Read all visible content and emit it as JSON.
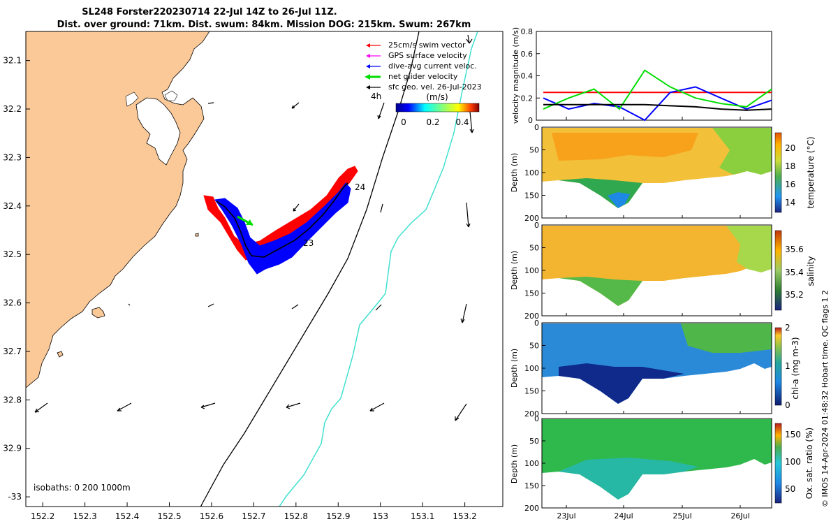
{
  "header": {
    "title_line1": "SL248 Forster220230714 22-Jul 14Z to 26-Jul 11Z.",
    "title_line2": "Dist. over ground: 71km. Dist. swum: 84km. Mission DOG: 215km. Swum: 267km"
  },
  "map": {
    "legend": [
      {
        "label": "25cm/s swim vector",
        "color": "#ff0000"
      },
      {
        "label": "GPS surface velocity",
        "color": "#ff00ff"
      },
      {
        "label": "dive-avg current veloc.",
        "color": "#0000ff"
      },
      {
        "label": "net glider velocity",
        "color": "#00dd00"
      },
      {
        "label": "sfc geo. vel. 26-Jul-2023",
        "color": "#000000"
      }
    ],
    "colorbar_title": "(m/s)",
    "colorbar_ticks": [
      "0",
      "0.2",
      "0.4"
    ],
    "label_4h": "4h",
    "label_24": "24",
    "label_23": "23",
    "isobaths_label": "isobaths: 0   200  1000m",
    "colors": {
      "land": "#fbc897",
      "isobath_200": "#000000",
      "isobath_1000": "#40e0d0",
      "dive_avg": "#0000ff",
      "swim": "#ff0000"
    }
  },
  "chart_data": [
    {
      "type": "scatter",
      "title": "",
      "xlabel": "",
      "ylabel": "",
      "x_ticks": [
        "152.2",
        "152.3",
        "152.4",
        "152.5",
        "152.6",
        "152.7",
        "152.8",
        "152.9",
        "153",
        "153.1",
        "153.2"
      ],
      "y_ticks": [
        "32.1",
        "32.2",
        "32.3",
        "32.4",
        "32.5",
        "32.6",
        "32.7",
        "32.8",
        "32.9",
        "-33"
      ],
      "xlim": [
        152.16,
        153.29
      ],
      "ylim": [
        -33.02,
        -32.04
      ],
      "series": [
        {
          "name": "glider track",
          "points": [
            [
              152.79,
              -32.5
            ],
            [
              152.85,
              -32.48
            ],
            [
              152.9,
              -32.42
            ],
            [
              152.92,
              -32.37
            ]
          ]
        }
      ]
    },
    {
      "type": "line",
      "ylabel": "velocity magnitude (m/s)",
      "ylim": [
        0,
        0.8
      ],
      "y_ticks": [
        "0",
        "0.2",
        "0.4",
        "0.6",
        "0.8"
      ],
      "x_ticks": [
        "23Jul",
        "24Jul",
        "25Jul",
        "26Jul"
      ],
      "series": [
        {
          "name": "25cm/s swim vector",
          "color": "#ff0000",
          "values": [
            0.25,
            0.25,
            0.25,
            0.25,
            0.25,
            0.25,
            0.25,
            0.25,
            0.25,
            0.25
          ]
        },
        {
          "name": "dive-avg current veloc.",
          "color": "#0000ff",
          "values": [
            0.2,
            0.1,
            0.15,
            0.12,
            0.0,
            0.25,
            0.3,
            0.2,
            0.1,
            0.18
          ]
        },
        {
          "name": "net glider velocity",
          "color": "#00dd00",
          "values": [
            0.1,
            0.2,
            0.28,
            0.1,
            0.45,
            0.3,
            0.2,
            0.15,
            0.12,
            0.28
          ]
        },
        {
          "name": "sfc geo. vel.",
          "color": "#000000",
          "values": [
            0.14,
            0.14,
            0.14,
            0.14,
            0.14,
            0.13,
            0.12,
            0.1,
            0.09,
            0.1
          ]
        }
      ]
    },
    {
      "type": "heatmap",
      "ylabel": "Depth (m)",
      "colorbar_label": "temperature (°C)",
      "colorbar_ticks": [
        "20",
        "18",
        "16",
        "14"
      ],
      "y_ticks": [
        "0",
        "50",
        "100",
        "150",
        "200"
      ]
    },
    {
      "type": "heatmap",
      "ylabel": "Depth (m)",
      "colorbar_label": "salinity",
      "colorbar_ticks": [
        "35.6",
        "35.4",
        "35.2"
      ],
      "y_ticks": [
        "0",
        "50",
        "100",
        "150",
        "200"
      ]
    },
    {
      "type": "heatmap",
      "ylabel": "Depth (m)",
      "colorbar_label": "chl-a (mg m-3)",
      "colorbar_ticks": [
        "2",
        "1",
        "0"
      ],
      "y_ticks": [
        "0",
        "50",
        "100",
        "150",
        "200"
      ]
    },
    {
      "type": "heatmap",
      "ylabel": "Depth (m)",
      "colorbar_label": "Ox. sat. ratio (%)",
      "colorbar_ticks": [
        "150",
        "100",
        "50"
      ],
      "y_ticks": [
        "0",
        "50",
        "100",
        "150",
        "200"
      ],
      "x_ticks": [
        "23Jul",
        "24Jul",
        "25Jul",
        "26Jul"
      ]
    }
  ],
  "footer": {
    "credit": "© IMOS 14-Apr-2024 01:48:32 Hobart time. QC flags 1  2"
  }
}
